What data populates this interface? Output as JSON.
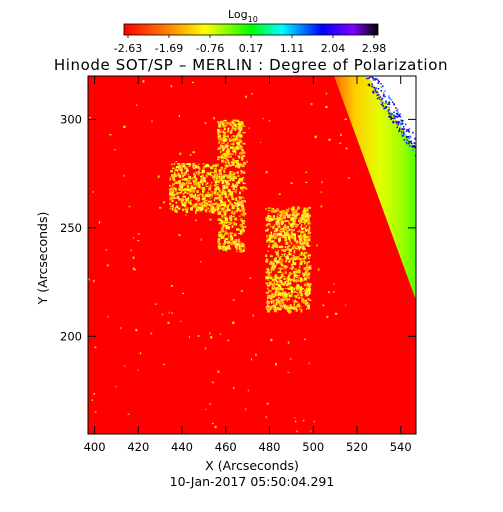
{
  "chart_data": {
    "type": "heatmap",
    "title": "Hinode SOT/SP – MERLIN : Degree of Polarization",
    "colorbar": {
      "title": "Log",
      "title_subscript": "10",
      "colormap": "rainbow",
      "colors": [
        "#ff0000",
        "#ffff00",
        "#00ff00",
        "#00ffff",
        "#0000ff",
        "#7f00ff",
        "#000000"
      ],
      "tick_labels": [
        "-2.63",
        "-1.69",
        "-0.76",
        "0.17",
        "1.11",
        "2.04",
        "2.98"
      ],
      "range": [
        -2.63,
        2.98
      ]
    },
    "xlabel": "X (Arcseconds)",
    "ylabel": "Y (Arcseconds)",
    "xlim": [
      397,
      547
    ],
    "ylim": [
      155,
      320
    ],
    "x_ticks": [
      400,
      420,
      440,
      460,
      480,
      500,
      520,
      540
    ],
    "y_ticks": [
      200,
      250,
      300
    ],
    "background_value": -2.63,
    "features": [
      {
        "kind": "bright-patch",
        "x": [
          478,
          498
        ],
        "y": [
          212,
          260
        ]
      },
      {
        "kind": "bright-patch",
        "x": [
          434,
          456
        ],
        "y": [
          258,
          280
        ]
      },
      {
        "kind": "bright-patch",
        "x": [
          456,
          468
        ],
        "y": [
          240,
          300
        ]
      },
      {
        "kind": "limb-gradient",
        "x_start_top": 510,
        "x_start_bottom": 547
      }
    ],
    "timestamp": "10-Jan-2017 05:50:04.291"
  }
}
